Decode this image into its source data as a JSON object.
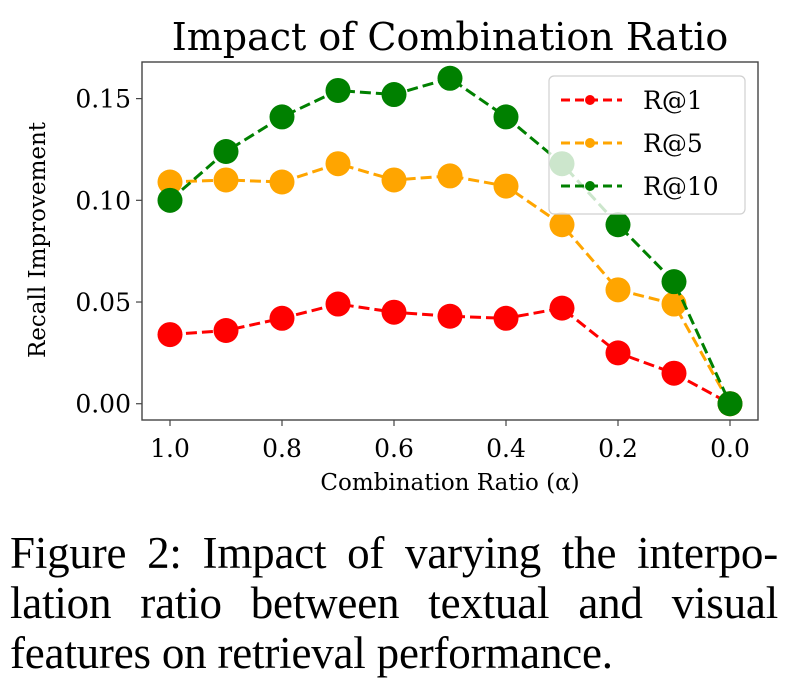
{
  "chart_data": {
    "type": "line",
    "title": "Impact of Combination Ratio",
    "xlabel": "Combination Ratio (α)",
    "ylabel": "Recall Improvement",
    "x": [
      1.0,
      0.9,
      0.8,
      0.7,
      0.6,
      0.5,
      0.4,
      0.3,
      0.2,
      0.1,
      0.0
    ],
    "xlim": [
      1.05,
      -0.05
    ],
    "ylim": [
      -0.008,
      0.168
    ],
    "xticks": [
      1.0,
      0.8,
      0.6,
      0.4,
      0.2,
      0.0
    ],
    "xtick_labels": [
      "1.0",
      "0.8",
      "0.6",
      "0.4",
      "0.2",
      "0.0"
    ],
    "yticks": [
      0.0,
      0.05,
      0.1,
      0.15
    ],
    "ytick_labels": [
      "0.00",
      "0.05",
      "0.10",
      "0.15"
    ],
    "x_inverted": true,
    "grid": false,
    "legend_position": "top-right",
    "series": [
      {
        "name": "R@1",
        "color": "#ff0000",
        "marker": "circle",
        "linestyle": "dashed",
        "values": [
          0.034,
          0.036,
          0.042,
          0.049,
          0.045,
          0.043,
          0.042,
          0.047,
          0.025,
          0.015,
          0.0
        ]
      },
      {
        "name": "R@5",
        "color": "#ffa500",
        "marker": "circle",
        "linestyle": "dashed",
        "values": [
          0.109,
          0.11,
          0.109,
          0.118,
          0.11,
          0.112,
          0.107,
          0.088,
          0.056,
          0.049,
          0.0
        ]
      },
      {
        "name": "R@10",
        "color": "#008000",
        "marker": "circle",
        "linestyle": "dashed",
        "values": [
          0.1,
          0.124,
          0.141,
          0.154,
          0.152,
          0.16,
          0.141,
          0.118,
          0.088,
          0.06,
          0.0
        ]
      }
    ]
  },
  "caption": {
    "lines": [
      "Figure 2: Impact of varying the interpo-",
      "lation ratio between textual and visual",
      "features on retrieval performance."
    ]
  }
}
